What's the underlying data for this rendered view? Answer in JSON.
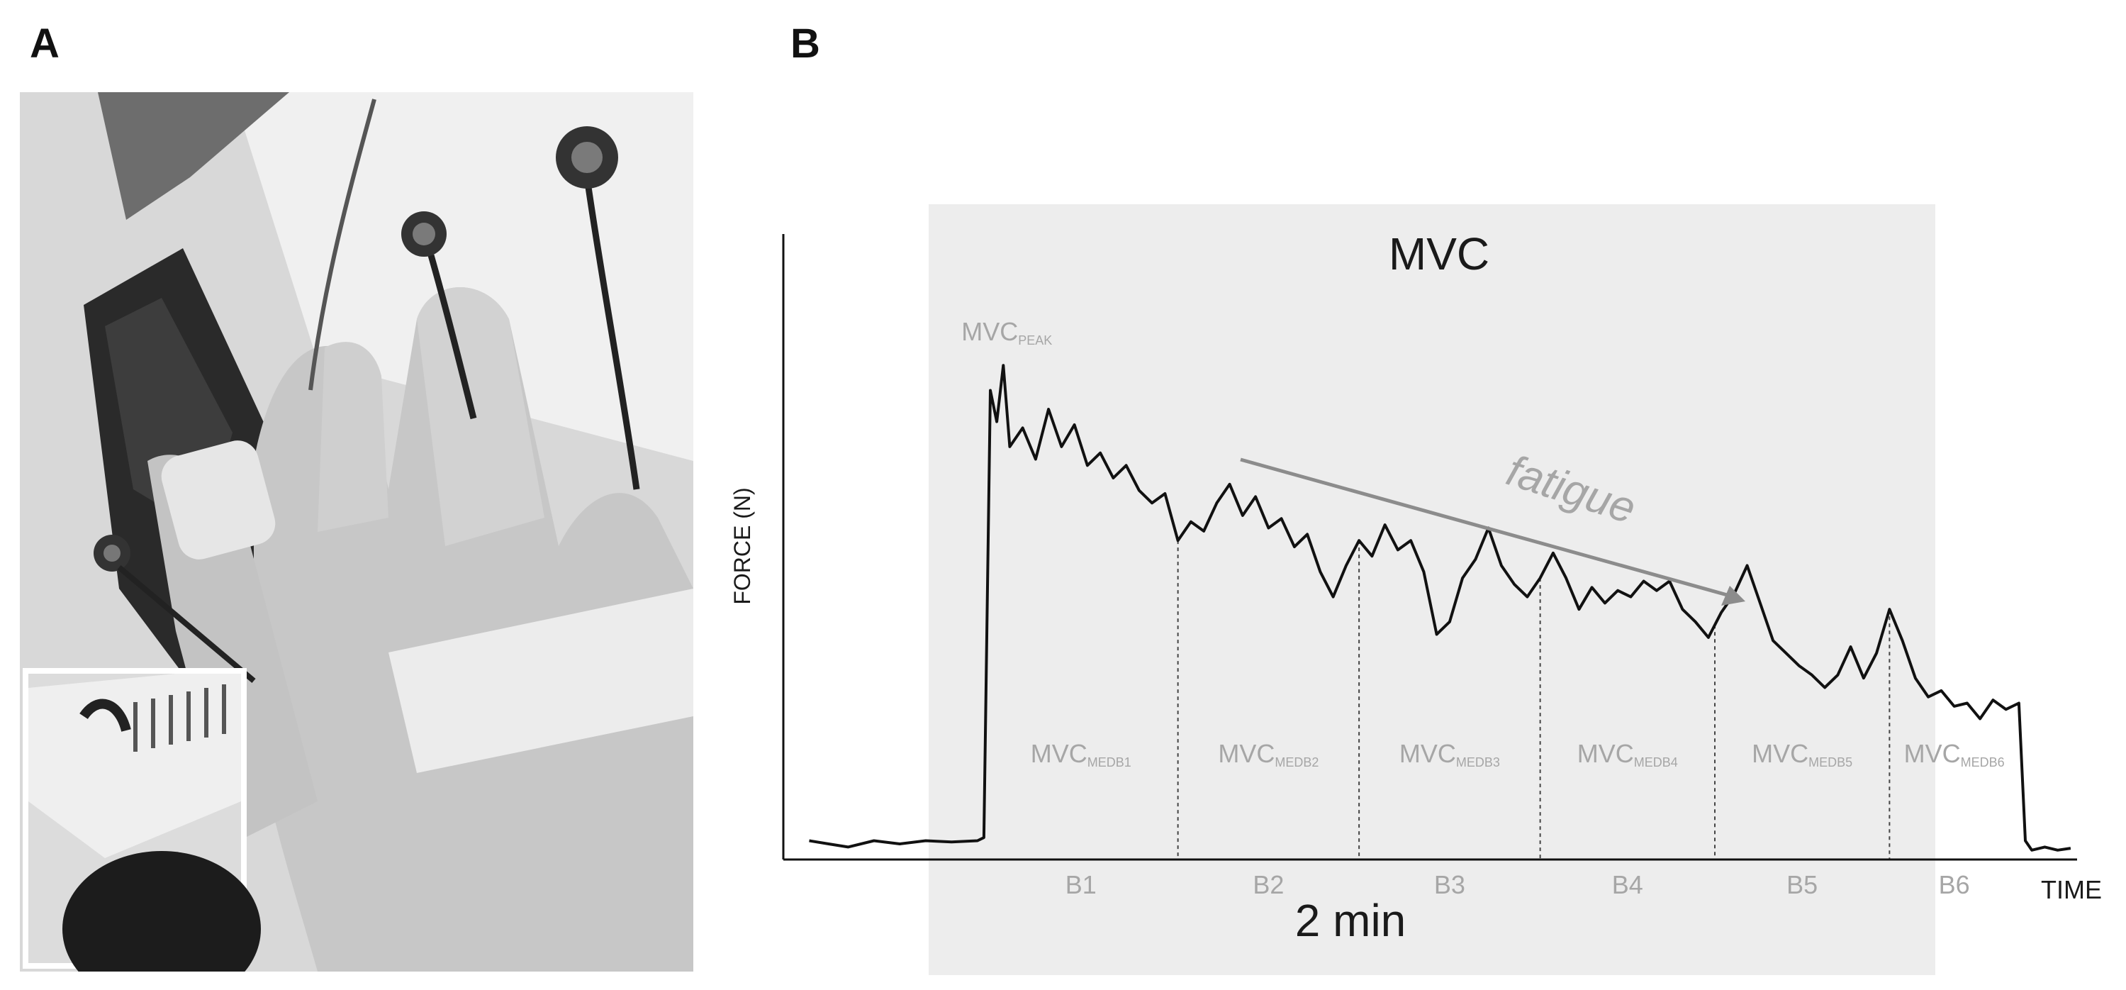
{
  "figure": {
    "panel_a_label": "A",
    "panel_b_label": "B"
  },
  "chart_data": {
    "type": "line",
    "title": "MVC",
    "xlabel": "TIME",
    "ylabel": "FORCE (N)",
    "duration_label": "2 min",
    "annotation_fatigue": "fatigue",
    "peak_label": {
      "main": "MVC",
      "sub": "PEAK"
    },
    "blocks": [
      "B1",
      "B2",
      "B3",
      "B4",
      "B5",
      "B6"
    ],
    "block_labels": [
      {
        "main": "MVC",
        "sub": "MEDB1"
      },
      {
        "main": "MVC",
        "sub": "MEDB2"
      },
      {
        "main": "MVC",
        "sub": "MEDB3"
      },
      {
        "main": "MVC",
        "sub": "MEDB4"
      },
      {
        "main": "MVC",
        "sub": "MEDB5"
      },
      {
        "main": "MVC",
        "sub": "MEDB6"
      }
    ],
    "x_range": [
      0,
      10
    ],
    "y_range": [
      0,
      10
    ],
    "block_boundaries": [
      1.55,
      3.05,
      4.45,
      5.85,
      7.2,
      8.55,
      9.55
    ],
    "grid": false,
    "shaded_region": true,
    "series": [
      {
        "values": [
          [
            0.2,
            0.3
          ],
          [
            0.35,
            0.25
          ],
          [
            0.5,
            0.2
          ],
          [
            0.7,
            0.3
          ],
          [
            0.9,
            0.25
          ],
          [
            1.1,
            0.3
          ],
          [
            1.3,
            0.28
          ],
          [
            1.5,
            0.3
          ],
          [
            1.55,
            0.35
          ],
          [
            1.6,
            7.5
          ],
          [
            1.65,
            7.0
          ],
          [
            1.7,
            7.9
          ],
          [
            1.75,
            6.6
          ],
          [
            1.85,
            6.9
          ],
          [
            1.95,
            6.4
          ],
          [
            2.05,
            7.2
          ],
          [
            2.15,
            6.6
          ],
          [
            2.25,
            6.95
          ],
          [
            2.35,
            6.3
          ],
          [
            2.45,
            6.5
          ],
          [
            2.55,
            6.1
          ],
          [
            2.65,
            6.3
          ],
          [
            2.75,
            5.9
          ],
          [
            2.85,
            5.7
          ],
          [
            2.95,
            5.85
          ],
          [
            3.05,
            5.1
          ],
          [
            3.15,
            5.4
          ],
          [
            3.25,
            5.25
          ],
          [
            3.35,
            5.7
          ],
          [
            3.45,
            6.0
          ],
          [
            3.55,
            5.5
          ],
          [
            3.65,
            5.8
          ],
          [
            3.75,
            5.3
          ],
          [
            3.85,
            5.45
          ],
          [
            3.95,
            5.0
          ],
          [
            4.05,
            5.2
          ],
          [
            4.15,
            4.6
          ],
          [
            4.25,
            4.2
          ],
          [
            4.35,
            4.7
          ],
          [
            4.45,
            5.1
          ],
          [
            4.55,
            4.85
          ],
          [
            4.65,
            5.35
          ],
          [
            4.75,
            4.95
          ],
          [
            4.85,
            5.1
          ],
          [
            4.95,
            4.6
          ],
          [
            5.05,
            3.6
          ],
          [
            5.15,
            3.8
          ],
          [
            5.25,
            4.5
          ],
          [
            5.35,
            4.8
          ],
          [
            5.45,
            5.3
          ],
          [
            5.55,
            4.7
          ],
          [
            5.65,
            4.4
          ],
          [
            5.75,
            4.2
          ],
          [
            5.85,
            4.5
          ],
          [
            5.95,
            4.9
          ],
          [
            6.05,
            4.5
          ],
          [
            6.15,
            4.0
          ],
          [
            6.25,
            4.35
          ],
          [
            6.35,
            4.1
          ],
          [
            6.45,
            4.3
          ],
          [
            6.55,
            4.2
          ],
          [
            6.65,
            4.45
          ],
          [
            6.75,
            4.3
          ],
          [
            6.85,
            4.45
          ],
          [
            6.95,
            4.0
          ],
          [
            7.05,
            3.8
          ],
          [
            7.15,
            3.55
          ],
          [
            7.25,
            3.95
          ],
          [
            7.35,
            4.25
          ],
          [
            7.45,
            4.7
          ],
          [
            7.55,
            4.1
          ],
          [
            7.65,
            3.5
          ],
          [
            7.75,
            3.3
          ],
          [
            7.85,
            3.1
          ],
          [
            7.95,
            2.95
          ],
          [
            8.05,
            2.75
          ],
          [
            8.15,
            2.95
          ],
          [
            8.25,
            3.4
          ],
          [
            8.35,
            2.9
          ],
          [
            8.45,
            3.3
          ],
          [
            8.55,
            4.0
          ],
          [
            8.65,
            3.5
          ],
          [
            8.75,
            2.9
          ],
          [
            8.85,
            2.6
          ],
          [
            8.95,
            2.7
          ],
          [
            9.05,
            2.45
          ],
          [
            9.15,
            2.5
          ],
          [
            9.25,
            2.25
          ],
          [
            9.35,
            2.55
          ],
          [
            9.45,
            2.4
          ],
          [
            9.55,
            2.5
          ],
          [
            9.6,
            0.3
          ],
          [
            9.65,
            0.15
          ],
          [
            9.75,
            0.2
          ],
          [
            9.85,
            0.15
          ],
          [
            9.95,
            0.18
          ]
        ]
      }
    ]
  }
}
